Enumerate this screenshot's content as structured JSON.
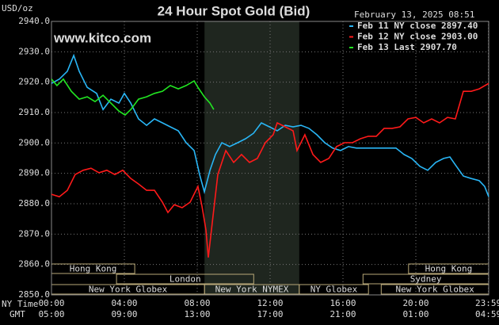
{
  "chart_data": {
    "type": "line",
    "title": "24 Hour Spot Gold (Bid)",
    "timestamp": "February 13, 2025 08:51",
    "y_label": "USD/oz",
    "watermark": "www.kitco.com",
    "x_row_labels": [
      "NY Time",
      "GMT"
    ],
    "xlim": [
      0,
      24
    ],
    "ylim": [
      2850,
      2940
    ],
    "yticks": [
      {
        "value": 2850,
        "label": "2850.0"
      },
      {
        "value": 2860,
        "label": "2860.0"
      },
      {
        "value": 2870,
        "label": "2870.0"
      },
      {
        "value": 2880,
        "label": "2880.0"
      },
      {
        "value": 2890,
        "label": "2890.0"
      },
      {
        "value": 2900,
        "label": "2900.0"
      },
      {
        "value": 2910,
        "label": "2910.0"
      },
      {
        "value": 2920,
        "label": "2920.0"
      },
      {
        "value": 2930,
        "label": "2930.0"
      },
      {
        "value": 2940,
        "label": "2940.0"
      }
    ],
    "xticks": [
      {
        "value": 0,
        "label": "00:00"
      },
      {
        "value": 4,
        "label": "04:00"
      },
      {
        "value": 8,
        "label": "08:00"
      },
      {
        "value": 12,
        "label": "12:00"
      },
      {
        "value": 16,
        "label": "16:00"
      },
      {
        "value": 20,
        "label": "20:00"
      },
      {
        "value": 23.983,
        "label": "23:59"
      }
    ],
    "gmt_labels": [
      "05:00",
      "09:00",
      "13:00",
      "17:00",
      "21:00",
      "01:00",
      "04:59"
    ],
    "grid": true,
    "highlight_x": [
      8.4,
      13.6
    ],
    "sessions": [
      {
        "label": "Hong Kong",
        "start": 0,
        "end": 4.57,
        "row": 0
      },
      {
        "label": "Hong Kong",
        "start": 19.6,
        "end": 24,
        "row": 0
      },
      {
        "label": "London",
        "start": 3.57,
        "end": 11.1,
        "row": 1
      },
      {
        "label": "Sydney",
        "start": 17.1,
        "end": 24,
        "row": 1
      },
      {
        "label": "New York Globex",
        "start": 0,
        "end": 8.4,
        "row": 2
      },
      {
        "label": "New York NYMEX",
        "start": 8.4,
        "end": 13.6,
        "row": 2
      },
      {
        "label": "NY Globex",
        "start": 13.6,
        "end": 17.4,
        "row": 2
      },
      {
        "label": "New York Globex",
        "start": 18.1,
        "end": 24,
        "row": 2
      }
    ],
    "series": [
      {
        "name": "Feb 11 NY close 2897.40",
        "color": "#29b6f6",
        "x": [
          0,
          0.43,
          0.87,
          1.22,
          1.52,
          1.96,
          2.48,
          2.83,
          3.26,
          3.7,
          4,
          4.35,
          4.78,
          5.22,
          5.65,
          6.09,
          6.52,
          6.96,
          7.39,
          7.83,
          8.13,
          8.39,
          8.7,
          9,
          9.35,
          9.78,
          10.22,
          10.65,
          11.09,
          11.52,
          11.96,
          12.39,
          12.83,
          13.26,
          13.7,
          14.13,
          14.57,
          15,
          15.43,
          15.87,
          16.3,
          16.74,
          17.17,
          17.61,
          18.04,
          18.48,
          18.91,
          19.35,
          19.78,
          20.22,
          20.65,
          21.09,
          21.52,
          21.87,
          22.17,
          22.61,
          23.04,
          23.48,
          23.78,
          24
        ],
        "values": [
          2919.6,
          2921.0,
          2923.6,
          2928.8,
          2923.6,
          2918.3,
          2916.3,
          2911.0,
          2914.4,
          2913.1,
          2916.3,
          2913.1,
          2907.9,
          2905.8,
          2907.9,
          2906.6,
          2905.3,
          2904.0,
          2900.1,
          2897.5,
          2889.6,
          2883.9,
          2891.0,
          2896.2,
          2900.1,
          2898.8,
          2900.1,
          2901.4,
          2903.2,
          2906.6,
          2905.3,
          2904.0,
          2905.8,
          2905.3,
          2905.8,
          2904.8,
          2902.7,
          2900.1,
          2898.3,
          2897.5,
          2898.8,
          2898.3,
          2898.3,
          2898.3,
          2898.3,
          2898.3,
          2898.3,
          2896.2,
          2894.9,
          2892.3,
          2891.0,
          2893.6,
          2894.9,
          2895.4,
          2892.8,
          2889.1,
          2888.3,
          2887.6,
          2885.7,
          2882.3
        ]
      },
      {
        "name": "Feb 12 NY close 2903.00",
        "color": "#ff1a1a",
        "x": [
          0,
          0.43,
          0.87,
          1.3,
          1.74,
          2.17,
          2.61,
          3.04,
          3.48,
          3.91,
          4.35,
          4.78,
          5.22,
          5.65,
          6.09,
          6.39,
          6.74,
          7.17,
          7.61,
          8.04,
          8.26,
          8.48,
          8.61,
          8.83,
          9.13,
          9.57,
          10,
          10.43,
          10.87,
          11.3,
          11.74,
          12.17,
          12.39,
          12.83,
          13.26,
          13.48,
          13.91,
          14.35,
          14.78,
          15.22,
          15.65,
          16.09,
          16.52,
          16.96,
          17.39,
          17.83,
          18.26,
          18.7,
          19.13,
          19.57,
          20,
          20.43,
          20.87,
          21.3,
          21.74,
          22.17,
          22.61,
          23.04,
          23.48,
          24
        ],
        "values": [
          2883.1,
          2882.3,
          2884.4,
          2889.6,
          2891.0,
          2891.7,
          2890.2,
          2891.0,
          2889.6,
          2891.0,
          2888.3,
          2886.5,
          2884.4,
          2884.4,
          2880.5,
          2877.1,
          2879.7,
          2878.7,
          2880.5,
          2885.7,
          2879.2,
          2871.4,
          2862.3,
          2874.0,
          2889.6,
          2897.5,
          2893.6,
          2896.2,
          2893.6,
          2894.9,
          2900.1,
          2902.7,
          2906.6,
          2905.3,
          2904.0,
          2897.5,
          2902.7,
          2896.2,
          2893.6,
          2894.9,
          2898.8,
          2900.1,
          2900.1,
          2901.4,
          2902.2,
          2902.2,
          2904.8,
          2904.8,
          2905.3,
          2907.9,
          2908.4,
          2906.6,
          2907.9,
          2906.6,
          2908.4,
          2907.9,
          2917.0,
          2917.0,
          2917.8,
          2919.6
        ]
      },
      {
        "name": "Feb 13 Last 2907.70",
        "color": "#22e622",
        "x": [
          0,
          0.3,
          0.65,
          1.09,
          1.52,
          1.96,
          2.39,
          2.83,
          3.26,
          3.7,
          4.04,
          4.35,
          4.78,
          5.22,
          5.65,
          6.09,
          6.52,
          6.96,
          7.39,
          7.83,
          8.04,
          8.39,
          8.7,
          8.91
        ],
        "values": [
          2921.0,
          2918.9,
          2921.0,
          2917.0,
          2914.4,
          2915.2,
          2913.6,
          2915.7,
          2913.1,
          2910.5,
          2909.2,
          2911.0,
          2914.4,
          2915.2,
          2916.3,
          2917.0,
          2918.9,
          2917.8,
          2918.9,
          2920.4,
          2918.3,
          2915.2,
          2913.1,
          2911.0
        ]
      }
    ]
  }
}
